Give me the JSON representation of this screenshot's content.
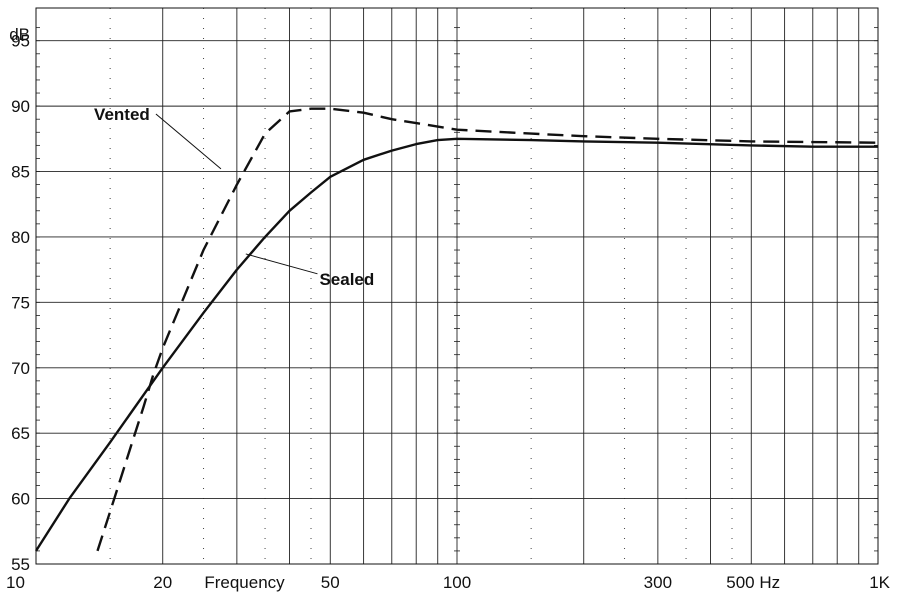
{
  "chart_data": {
    "type": "line",
    "title": "",
    "xlabel": "Frequency",
    "ylabel": "dB",
    "xscale": "log",
    "xlim": [
      10,
      1000
    ],
    "ylim": [
      55,
      97.5
    ],
    "grid": true,
    "legend": "none",
    "x_tick_labels": [
      "10",
      "20",
      "50",
      "100",
      "300",
      "500 Hz",
      "1K"
    ],
    "y_tick_labels": [
      "55",
      "60",
      "65",
      "70",
      "75",
      "80",
      "85",
      "90",
      "95"
    ],
    "series": [
      {
        "name": "Sealed",
        "line_style": "solid",
        "x": [
          10,
          12,
          15,
          20,
          25,
          30,
          35,
          40,
          45,
          50,
          60,
          70,
          80,
          90,
          100,
          150,
          200,
          300,
          500,
          700,
          1000
        ],
        "y": [
          56,
          60,
          64.3,
          70,
          74.2,
          77.5,
          80,
          82,
          83.4,
          84.6,
          85.9,
          86.6,
          87.1,
          87.4,
          87.5,
          87.4,
          87.3,
          87.2,
          87.0,
          86.9,
          86.9
        ]
      },
      {
        "name": "Vented",
        "line_style": "dashed",
        "x": [
          14,
          15,
          17,
          18,
          19,
          20,
          25,
          30,
          35,
          40,
          45,
          50,
          60,
          70,
          80,
          100,
          150,
          200,
          300,
          500,
          1000
        ],
        "y": [
          56,
          59,
          64.5,
          67,
          69.5,
          71.5,
          79,
          84,
          87.9,
          89.6,
          89.8,
          89.8,
          89.5,
          89.0,
          88.7,
          88.2,
          87.9,
          87.7,
          87.5,
          87.3,
          87.2
        ]
      }
    ],
    "annotations": [
      {
        "text": "Vented",
        "target_series": "Vented",
        "x": 28,
        "y": 88.4
      },
      {
        "text": "Sealed",
        "target_series": "Sealed",
        "x": 33,
        "y": 79
      }
    ]
  }
}
